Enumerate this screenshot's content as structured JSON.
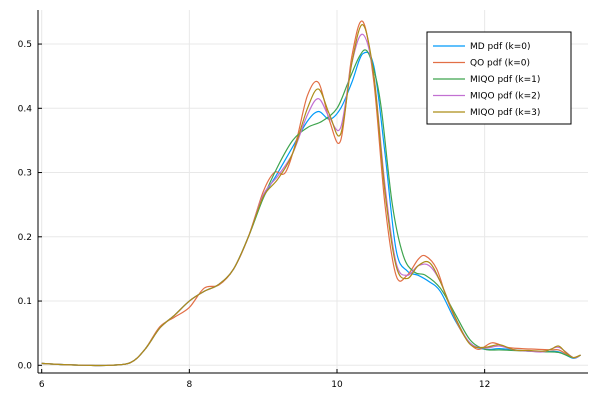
{
  "chart_data": {
    "type": "line",
    "title": "",
    "xlabel": "",
    "ylabel": "",
    "xlim": [
      5.95,
      13.4
    ],
    "ylim": [
      -0.012,
      0.553
    ],
    "grid": true,
    "legend_position": "top-right",
    "x_ticks": [
      {
        "value": 6,
        "label": "6"
      },
      {
        "value": 8,
        "label": "8"
      },
      {
        "value": 10,
        "label": "10"
      },
      {
        "value": 12,
        "label": "12"
      }
    ],
    "y_ticks": [
      {
        "value": 0.0,
        "label": "0.0"
      },
      {
        "value": 0.1,
        "label": "0.1"
      },
      {
        "value": 0.2,
        "label": "0.2"
      },
      {
        "value": 0.3,
        "label": "0.3"
      },
      {
        "value": 0.4,
        "label": "0.4"
      },
      {
        "value": 0.5,
        "label": "0.5"
      }
    ],
    "series": [
      {
        "name": "MD pdf (k=0)",
        "color": "#009af9",
        "x": [
          6.0,
          6.3,
          6.6,
          6.9,
          7.2,
          7.4,
          7.6,
          7.8,
          8.0,
          8.2,
          8.4,
          8.6,
          8.8,
          9.0,
          9.2,
          9.4,
          9.6,
          9.75,
          9.9,
          10.05,
          10.2,
          10.35,
          10.5,
          10.65,
          10.8,
          10.95,
          11.1,
          11.25,
          11.4,
          11.6,
          11.8,
          12.0,
          12.2,
          12.4,
          12.6,
          12.8,
          13.0,
          13.2,
          13.3
        ],
        "y": [
          0.003,
          0.001,
          0.0,
          0.0,
          0.004,
          0.025,
          0.058,
          0.078,
          0.1,
          0.115,
          0.126,
          0.15,
          0.2,
          0.26,
          0.3,
          0.34,
          0.38,
          0.395,
          0.383,
          0.4,
          0.44,
          0.485,
          0.465,
          0.33,
          0.18,
          0.147,
          0.14,
          0.13,
          0.115,
          0.07,
          0.035,
          0.025,
          0.026,
          0.024,
          0.022,
          0.021,
          0.021,
          0.011,
          0.016
        ]
      },
      {
        "name": "QO pdf (k=0)",
        "color": "#e26f46",
        "x": [
          6.0,
          6.3,
          6.6,
          6.9,
          7.2,
          7.4,
          7.6,
          7.8,
          8.0,
          8.2,
          8.4,
          8.6,
          8.8,
          9.0,
          9.15,
          9.3,
          9.45,
          9.6,
          9.75,
          9.9,
          10.05,
          10.2,
          10.35,
          10.5,
          10.65,
          10.8,
          10.95,
          11.1,
          11.2,
          11.35,
          11.5,
          11.7,
          11.9,
          12.1,
          12.3,
          12.5,
          12.7,
          12.9,
          13.0,
          13.1,
          13.2,
          13.3
        ],
        "y": [
          0.003,
          0.001,
          0.0,
          0.0,
          0.004,
          0.025,
          0.06,
          0.075,
          0.09,
          0.12,
          0.125,
          0.15,
          0.2,
          0.27,
          0.3,
          0.3,
          0.35,
          0.42,
          0.44,
          0.38,
          0.35,
          0.48,
          0.535,
          0.44,
          0.25,
          0.14,
          0.14,
          0.165,
          0.17,
          0.15,
          0.1,
          0.05,
          0.025,
          0.035,
          0.028,
          0.026,
          0.025,
          0.024,
          0.024,
          0.018,
          0.012,
          0.016
        ]
      },
      {
        "name": "MIQO pdf (k=1)",
        "color": "#3ea44e",
        "x": [
          6.0,
          6.3,
          6.6,
          6.9,
          7.2,
          7.4,
          7.6,
          7.8,
          8.0,
          8.2,
          8.4,
          8.6,
          8.8,
          9.0,
          9.2,
          9.4,
          9.6,
          9.8,
          10.0,
          10.15,
          10.3,
          10.4,
          10.5,
          10.6,
          10.75,
          10.9,
          11.05,
          11.2,
          11.4,
          11.6,
          11.8,
          12.0,
          12.2,
          12.4,
          12.6,
          12.8,
          13.0,
          13.2,
          13.3
        ],
        "y": [
          0.003,
          0.001,
          0.0,
          0.0,
          0.004,
          0.025,
          0.058,
          0.078,
          0.1,
          0.115,
          0.126,
          0.15,
          0.2,
          0.26,
          0.31,
          0.35,
          0.37,
          0.38,
          0.4,
          0.44,
          0.48,
          0.49,
          0.46,
          0.4,
          0.25,
          0.17,
          0.145,
          0.14,
          0.12,
          0.08,
          0.04,
          0.025,
          0.024,
          0.023,
          0.022,
          0.021,
          0.02,
          0.012,
          0.016
        ]
      },
      {
        "name": "MIQO pdf (k=2)",
        "color": "#c271d2",
        "x": [
          6.0,
          6.3,
          6.6,
          6.9,
          7.2,
          7.4,
          7.6,
          7.8,
          8.0,
          8.2,
          8.4,
          8.6,
          8.8,
          9.0,
          9.2,
          9.4,
          9.6,
          9.75,
          9.9,
          10.05,
          10.2,
          10.35,
          10.5,
          10.65,
          10.8,
          10.95,
          11.1,
          11.25,
          11.4,
          11.6,
          11.8,
          12.0,
          12.2,
          12.4,
          12.6,
          12.8,
          13.0,
          13.2,
          13.3
        ],
        "y": [
          0.003,
          0.001,
          0.0,
          0.0,
          0.004,
          0.025,
          0.058,
          0.078,
          0.1,
          0.115,
          0.126,
          0.15,
          0.2,
          0.265,
          0.295,
          0.33,
          0.39,
          0.415,
          0.385,
          0.37,
          0.47,
          0.515,
          0.45,
          0.28,
          0.16,
          0.14,
          0.155,
          0.155,
          0.13,
          0.075,
          0.035,
          0.027,
          0.03,
          0.024,
          0.022,
          0.021,
          0.028,
          0.012,
          0.016
        ]
      },
      {
        "name": "MIQO pdf (k=3)",
        "color": "#ac8d18",
        "x": [
          6.0,
          6.3,
          6.6,
          6.9,
          7.2,
          7.4,
          7.6,
          7.8,
          8.0,
          8.2,
          8.4,
          8.6,
          8.8,
          9.0,
          9.2,
          9.4,
          9.6,
          9.75,
          9.9,
          10.05,
          10.2,
          10.35,
          10.5,
          10.65,
          10.8,
          10.95,
          11.1,
          11.25,
          11.4,
          11.6,
          11.8,
          12.0,
          12.2,
          12.4,
          12.6,
          12.8,
          12.9,
          13.0,
          13.1,
          13.2,
          13.3
        ],
        "y": [
          0.003,
          0.001,
          0.0,
          0.0,
          0.004,
          0.025,
          0.058,
          0.078,
          0.1,
          0.115,
          0.126,
          0.15,
          0.2,
          0.262,
          0.29,
          0.33,
          0.4,
          0.43,
          0.39,
          0.36,
          0.47,
          0.53,
          0.45,
          0.27,
          0.155,
          0.135,
          0.155,
          0.16,
          0.13,
          0.075,
          0.033,
          0.028,
          0.032,
          0.024,
          0.023,
          0.022,
          0.025,
          0.03,
          0.02,
          0.012,
          0.016
        ]
      }
    ]
  }
}
